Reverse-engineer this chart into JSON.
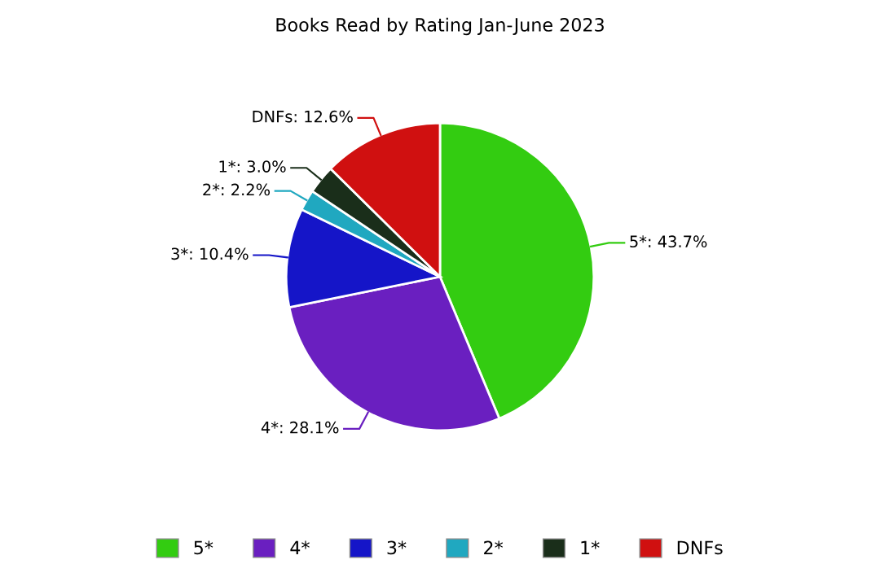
{
  "chart_data": {
    "type": "pie",
    "title": "Books Read by Rating Jan-June 2023",
    "categories": [
      "5*",
      "4*",
      "3*",
      "2*",
      "1*",
      "DNFs"
    ],
    "values": [
      43.7,
      28.1,
      10.4,
      2.2,
      3.0,
      12.6
    ],
    "colors": [
      "#33cc11",
      "#6a1fc0",
      "#1515c8",
      "#20a8c0",
      "#1a2e1a",
      "#d01010"
    ],
    "value_labels": [
      "5*: 43.7%",
      "4*: 28.1%",
      "3*: 10.4%",
      "2*: 2.2%",
      "1*: 3.0%",
      "DNFs: 12.6%"
    ],
    "legend": "bottom"
  }
}
